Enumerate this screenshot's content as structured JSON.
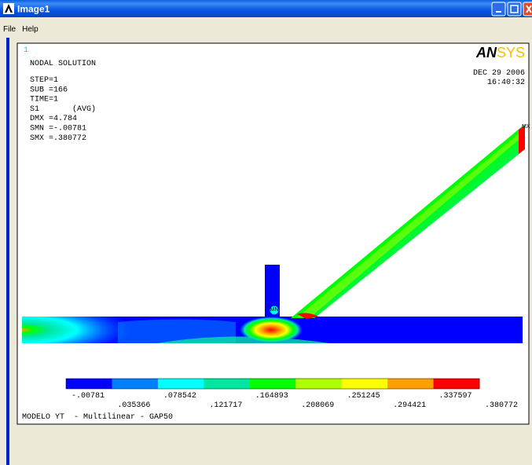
{
  "window": {
    "title": "Image1",
    "menu": [
      "File",
      "Help"
    ]
  },
  "plot": {
    "window_number": "1",
    "header": "NODAL SOLUTION",
    "info": [
      "STEP=1",
      "SUB =166",
      "TIME=1",
      "S1       (AVG)",
      "DMX =4.784",
      "SMN =-.00781",
      "SMX =.380772"
    ],
    "logo": {
      "bold": "AN",
      "light": "SYS"
    },
    "date": "DEC 29 2006",
    "time": "16:40:32",
    "markers": [
      "MN",
      "MX"
    ],
    "legend": {
      "labels": [
        "-.00781",
        ".035366",
        ".078542",
        ".121717",
        ".164893",
        ".208069",
        ".251245",
        ".294421",
        ".337597",
        ".380772"
      ],
      "colors": [
        "#0000ff",
        "#0080ff",
        "#00ffff",
        "#00e6a0",
        "#00ff00",
        "#b0ff00",
        "#ffff00",
        "#ffa000",
        "#ff0000"
      ]
    },
    "footer": "MODELO YT  - Multilinear - GAP50"
  }
}
